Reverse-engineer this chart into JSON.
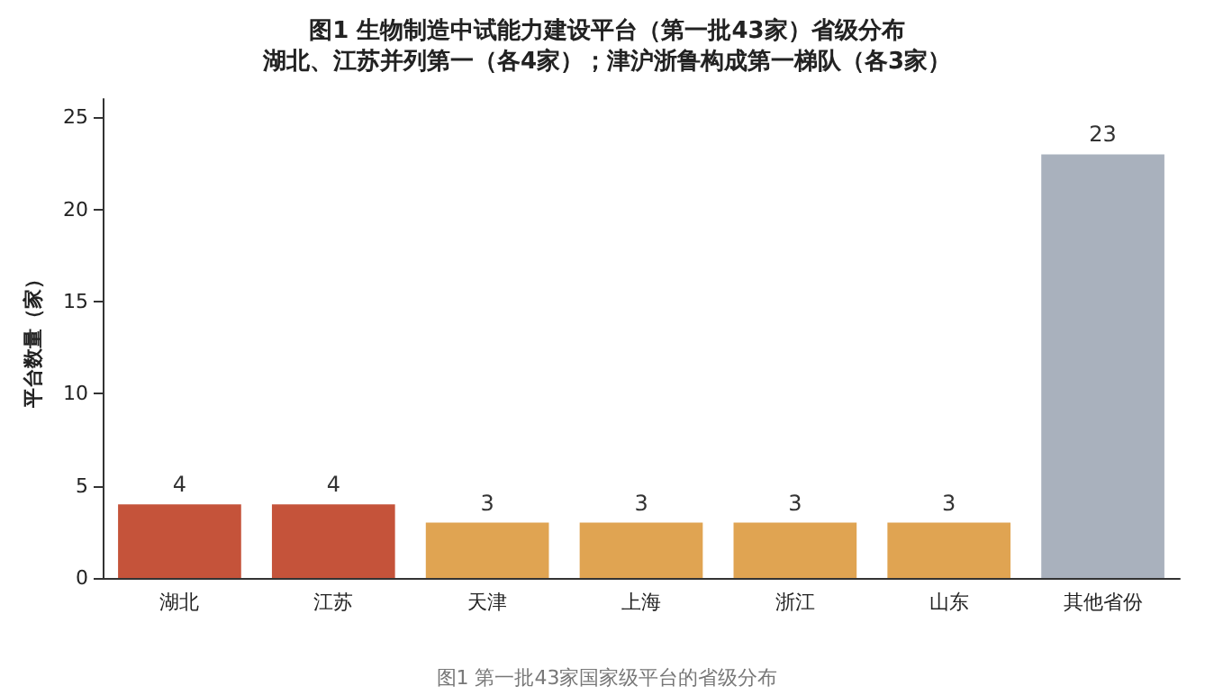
{
  "chart_data": {
    "type": "bar",
    "title": "图1 生物制造中试能力建设平台（第一批43家）省级分布",
    "subtitle": "湖北、江苏并列第一（各4家）；津沪浙鲁构成第一梯队（各3家）",
    "ylabel": "平台数量（家）",
    "categories": [
      "湖北",
      "江苏",
      "天津",
      "上海",
      "浙江",
      "山东",
      "其他省份"
    ],
    "values": [
      4,
      4,
      3,
      3,
      3,
      3,
      23
    ],
    "colors": [
      "#c5533a",
      "#c5533a",
      "#e0a452",
      "#e0a452",
      "#e0a452",
      "#e0a452",
      "#a9b1bd"
    ],
    "ylim": [
      0,
      26
    ],
    "yticks": [
      0,
      5,
      10,
      15,
      20,
      25
    ],
    "grid": false,
    "data_labels": true,
    "annotations": [
      "图1 第一批43家国家级平台的省级分布"
    ]
  }
}
